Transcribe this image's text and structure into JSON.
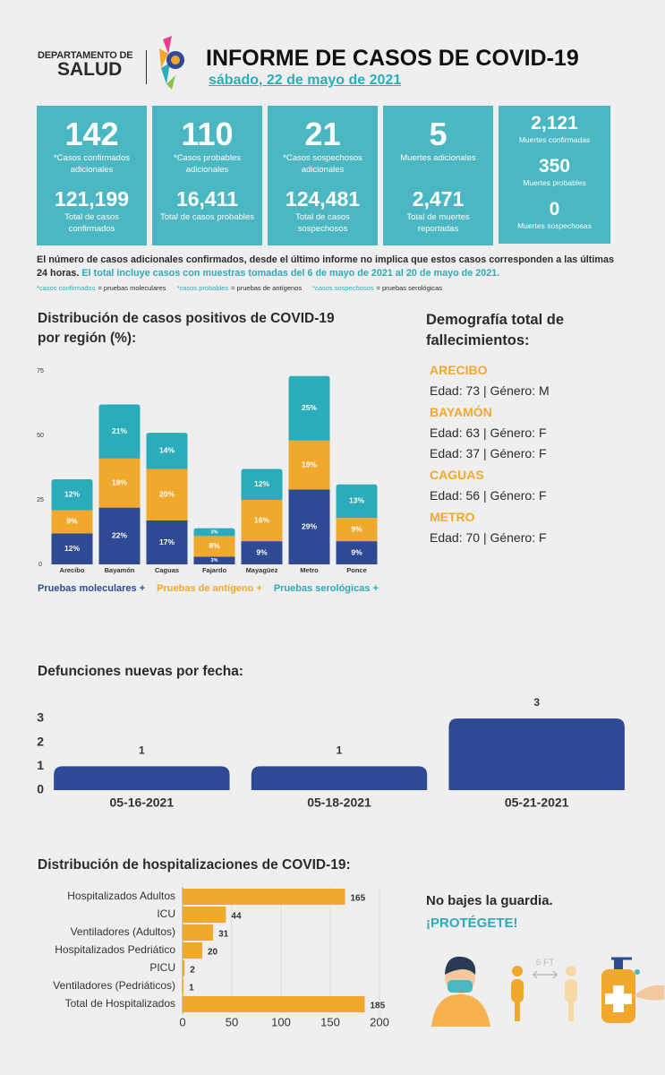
{
  "header": {
    "department_line1": "DEPARTAMENTO DE",
    "department_line2": "SALUD",
    "title": "INFORME DE CASOS DE COVID-19",
    "date": "sábado, 22 de mayo de 2021"
  },
  "stats": [
    {
      "value": "142",
      "label": "*Casos confirmados adicionales",
      "total": "121,199",
      "total_label": "Total de casos confirmados"
    },
    {
      "value": "110",
      "label": "*Casos probables adicionales",
      "total": "16,411",
      "total_label": "Total de casos probables"
    },
    {
      "value": "21",
      "label": "*Casos sospechosos adicionales",
      "total": "124,481",
      "total_label": "Total de casos sospechosos"
    },
    {
      "value": "5",
      "label": "Muertes adicionales",
      "total": "2,471",
      "total_label": "Total de muertes reportadas"
    }
  ],
  "deaths": [
    {
      "value": "2,121",
      "label": "Muertes confirmadas"
    },
    {
      "value": "350",
      "label": "Muertes probables"
    },
    {
      "value": "0",
      "label": "Muertes sospechosas"
    }
  ],
  "notes": {
    "line1": "El número de casos adicionales confirmados, desde el último informe no implica que estos casos corresponden a las últimas 24 horas.",
    "line2": "El total incluye casos con muestras tomadas del 6 de mayo de 2021 al 20 de mayo de 2021.",
    "legend": [
      {
        "term": "*casos confirmados",
        "definition": "= pruebas moleculares"
      },
      {
        "term": "*casos probables",
        "definition": "= pruebas de antígenos"
      },
      {
        "term": "*casos sospechosos",
        "definition": "= pruebas serológicas"
      }
    ]
  },
  "demography": {
    "title": "Demografía total de fallecimientos:",
    "groups": [
      {
        "region": "ARECIBO",
        "entries": [
          "Edad: 73 | Género: M"
        ]
      },
      {
        "region": "BAYAMÓN",
        "entries": [
          "Edad: 63 | Género: F",
          "Edad: 37 | Género: F"
        ]
      },
      {
        "region": "CAGUAS",
        "entries": [
          "Edad: 56 | Género: F"
        ]
      },
      {
        "region": "METRO",
        "entries": [
          "Edad: 70 | Género: F"
        ]
      }
    ]
  },
  "chart_data": [
    {
      "type": "bar",
      "stacked": true,
      "title": "Distribución de casos positivos de COVID-19 por región (%):",
      "categories": [
        "Arecibo",
        "Bayamón",
        "Caguas",
        "Fajardo",
        "Mayagüez",
        "Metro",
        "Ponce"
      ],
      "series": [
        {
          "name": "Pruebas moleculares +",
          "color": "#2e4a94",
          "values": [
            12,
            22,
            17,
            3,
            9,
            29,
            9
          ],
          "value_labels": [
            "12%",
            "22%",
            "17%",
            "3%",
            "9%",
            "29%",
            "9%"
          ]
        },
        {
          "name": "Pruebas de antígeno +",
          "color": "#f0a92c",
          "values": [
            9,
            19,
            20,
            8,
            16,
            19,
            9
          ],
          "value_labels": [
            "9%",
            "19%",
            "20%",
            "8%",
            "16%",
            "19%",
            "9%"
          ]
        },
        {
          "name": "Pruebas serológicas +",
          "color": "#2aacba",
          "values": [
            12,
            21,
            14,
            3,
            12,
            25,
            13
          ],
          "value_labels": [
            "12%",
            "21%",
            "14%",
            "3%",
            "12%",
            "25%",
            "13%"
          ]
        }
      ],
      "ylim": [
        0,
        75
      ],
      "yticks": [
        0,
        25,
        50,
        75
      ],
      "grid": false
    },
    {
      "type": "bar",
      "title": "Defunciones nuevas por fecha:",
      "categories": [
        "05-16-2021",
        "05-18-2021",
        "05-21-2021"
      ],
      "values": [
        1,
        1,
        3
      ],
      "color": "#2e4a94",
      "ylim": [
        0,
        3
      ],
      "yticks": [
        0,
        1,
        2,
        3
      ],
      "grid": false
    },
    {
      "type": "bar",
      "horizontal": true,
      "title": "Distribución de hospitalizaciones de COVID-19:",
      "categories": [
        "Hospitalizados Adultos",
        "ICU",
        "Ventiladores (Adultos)",
        "Hospitalizados Pedriático",
        "PICU",
        "Ventiladores (Pedriáticos)",
        "Total de Hospitalizados"
      ],
      "values": [
        165,
        44,
        31,
        20,
        2,
        1,
        185
      ],
      "color": "#f0a92c",
      "xlim": [
        0,
        200
      ],
      "xticks": [
        0,
        50,
        100,
        150,
        200
      ],
      "grid": true
    }
  ],
  "slogan": {
    "line1": "No bajes la guardia.",
    "line2": "¡PROTÉGETE!",
    "distance": "6 FT"
  }
}
